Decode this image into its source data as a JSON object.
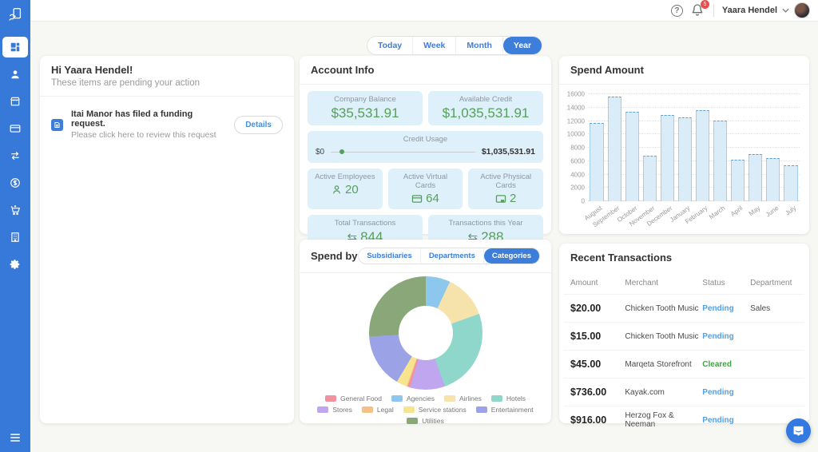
{
  "icons": {
    "help_glyph": "?",
    "transactions_glyph": "⇆"
  },
  "topbar": {
    "user_name": "Yaara Hendel",
    "notification_count": "5"
  },
  "sidebar": {
    "items": [
      "dashboard",
      "employees",
      "store",
      "cards",
      "transactions",
      "funds",
      "purchases",
      "company",
      "settings"
    ]
  },
  "time_tabs": {
    "options": [
      "Today",
      "Week",
      "Month",
      "Year"
    ],
    "active": "Year"
  },
  "pending_card": {
    "greeting": "Hi Yaara Hendel!",
    "subtitle": "These items are pending your action",
    "item": {
      "title": "Itai Manor has filed a funding request.",
      "subtitle": "Please click here to review this request",
      "button_label": "Details"
    }
  },
  "account_info": {
    "title": "Account Info",
    "company_balance": {
      "label": "Company Balance",
      "value": "$35,531.91"
    },
    "available_credit": {
      "label": "Available Credit",
      "value": "$1,035,531.91"
    },
    "credit_usage": {
      "label": "Credit Usage",
      "min": "$0",
      "max": "$1,035,531.91"
    },
    "active_employees": {
      "label": "Active Employees",
      "value": "20"
    },
    "active_virtual_cards": {
      "label": "Active Virtual Cards",
      "value": "64"
    },
    "active_physical_cards": {
      "label": "Active Physical Cards",
      "value": "2"
    },
    "total_transactions": {
      "label": "Total Transactions",
      "value": "844"
    },
    "transactions_this_year": {
      "label": "Transactions this Year",
      "value": "288"
    }
  },
  "spend_by": {
    "title": "Spend by",
    "tabs": {
      "options": [
        "Subsidiaries",
        "Departments",
        "Categories"
      ],
      "active": "Categories"
    }
  },
  "transactions_card": {
    "title": "Recent Transactions",
    "columns": [
      "Amount",
      "Merchant",
      "Status",
      "Department"
    ],
    "rows": [
      {
        "amount": "$20.00",
        "merchant": "Chicken Tooth Music",
        "status": "Pending",
        "status_type": "pending",
        "department": "Sales"
      },
      {
        "amount": "$15.00",
        "merchant": "Chicken Tooth Music",
        "status": "Pending",
        "status_type": "pending",
        "department": ""
      },
      {
        "amount": "$45.00",
        "merchant": "Marqeta Storefront",
        "status": "Cleared",
        "status_type": "cleared",
        "department": ""
      },
      {
        "amount": "$736.00",
        "merchant": "Kayak.com",
        "status": "Pending",
        "status_type": "pending",
        "department": ""
      },
      {
        "amount": "$916.00",
        "merchant": "Herzog Fox & Neeman",
        "status": "Pending",
        "status_type": "pending",
        "department": ""
      }
    ]
  },
  "chart_data": [
    {
      "type": "bar",
      "title": "Spend Amount",
      "categories": [
        "August",
        "September",
        "October",
        "November",
        "December",
        "January",
        "February",
        "March",
        "April",
        "May",
        "June",
        "July"
      ],
      "values": [
        11700,
        15600,
        13400,
        6850,
        12950,
        12550,
        13600,
        12100,
        6250,
        7050,
        6450,
        5350
      ],
      "xlabel": "",
      "ylabel": "",
      "ylim": [
        0,
        16000
      ],
      "ytick_step": 2000,
      "grid": true,
      "bar_fill": "#d9ecf8",
      "bar_border": "#a5cde9"
    },
    {
      "type": "pie",
      "title": "Spend by Categories",
      "donut": true,
      "slices": [
        {
          "name": "Agencies",
          "value": 7,
          "color": "#8ec7ed"
        },
        {
          "name": "Airlines",
          "value": 12.5,
          "color": "#f6e3ab"
        },
        {
          "name": "Hotels",
          "value": 25,
          "color": "#8fd6cb"
        },
        {
          "name": "Stores",
          "value": 10,
          "color": "#bfa6ee"
        },
        {
          "name": "General Food",
          "value": 0.7,
          "color": "#f4919e"
        },
        {
          "name": "Legal",
          "value": 0.3,
          "color": "#f5c189"
        },
        {
          "name": "Service stations",
          "value": 3,
          "color": "#f6e48e"
        },
        {
          "name": "Entertainment",
          "value": 15.5,
          "color": "#9ba3e6"
        },
        {
          "name": "Utilities",
          "value": 26,
          "color": "#8aa779"
        }
      ],
      "legend_order": [
        "General Food",
        "Agencies",
        "Airlines",
        "Hotels",
        "Stores",
        "Legal",
        "Service stations",
        "Entertainment",
        "Utilities"
      ],
      "legend_position": "bottom"
    }
  ],
  "colors": {
    "sidebar": "#3779d9",
    "accent": "#3d7edb",
    "value_green": "#55a05a",
    "tile_bg": "#def0fa",
    "pending": "#55a0e0",
    "cleared": "#43a047",
    "badge_red": "#e8504f"
  }
}
